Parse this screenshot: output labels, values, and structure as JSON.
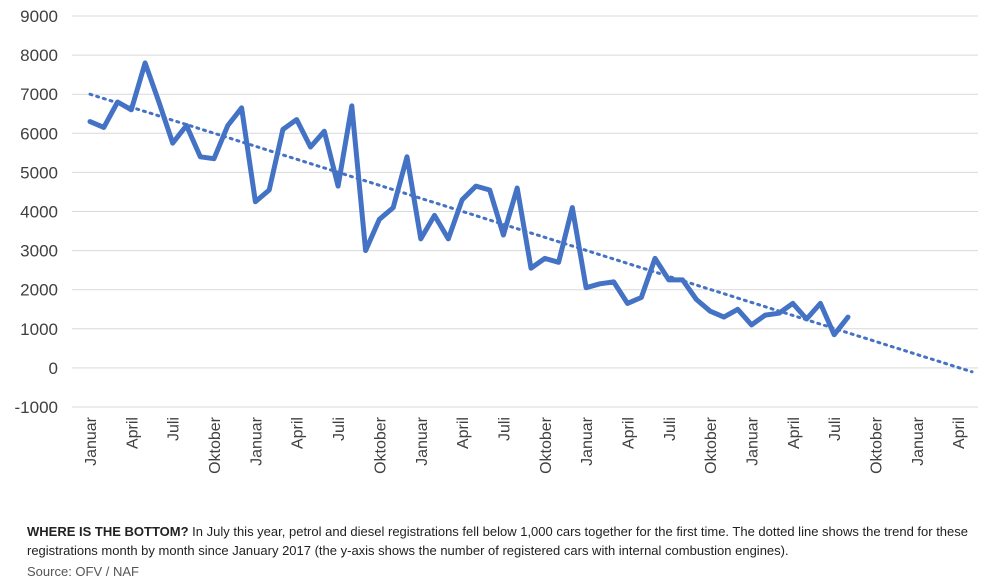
{
  "chart_data": {
    "type": "line",
    "title": "",
    "xlabel": "",
    "ylabel": "",
    "ylim": [
      -1000,
      9000
    ],
    "yticks": [
      -1000,
      0,
      1000,
      2000,
      3000,
      4000,
      5000,
      6000,
      7000,
      8000,
      9000
    ],
    "x_tick_labels": [
      "Januar",
      "April",
      "Juli",
      "Oktober",
      "Januar",
      "April",
      "Juli",
      "Oktober",
      "Januar",
      "April",
      "Juli",
      "Oktober",
      "Januar",
      "April",
      "Juli",
      "Oktober",
      "Januar",
      "April",
      "Juli",
      "Oktober",
      "Januar",
      "April"
    ],
    "months_total": 64,
    "grid": true,
    "series": [
      {
        "name": "Petrol and diesel registrations",
        "style": "solid",
        "color": "#4472c4",
        "values": [
          6300,
          6150,
          6800,
          6600,
          7800,
          6800,
          5750,
          6200,
          5400,
          5350,
          6200,
          6650,
          4250,
          4550,
          6100,
          6350,
          5650,
          6050,
          4650,
          6700,
          3000,
          3800,
          4100,
          5400,
          3300,
          3900,
          3300,
          4300,
          4650,
          4550,
          3400,
          4600,
          2550,
          2800,
          2700,
          4100,
          2050,
          2150,
          2200,
          1650,
          1800,
          2800,
          2250,
          2250,
          1750,
          1450,
          1300,
          1500,
          1100,
          1350,
          1400,
          1650,
          1250,
          1650,
          850,
          1300
        ]
      },
      {
        "name": "Trend",
        "style": "dotted",
        "color": "#4472c4",
        "start": 7000,
        "end": -100
      }
    ]
  },
  "caption": {
    "bold": "WHERE IS THE BOTTOM?",
    "text": " In July this year, petrol and diesel registrations fell below 1,000 cars together for the first time. The dotted line shows the trend for these registrations month by month since January 2017 (the y-axis shows the number of registered cars with internal combustion engines)."
  },
  "source": "Source: OFV / NAF"
}
